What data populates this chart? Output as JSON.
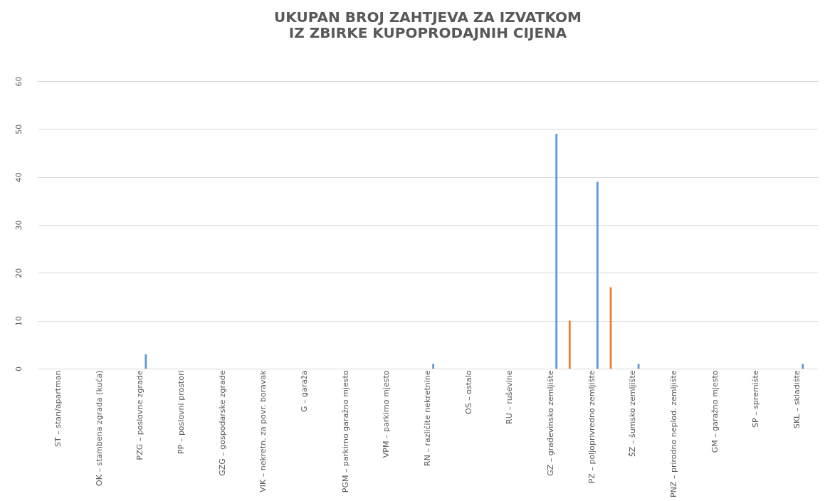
{
  "chart_data": {
    "type": "bar",
    "title": [
      "UKUPAN BROJ ZAHTJEVA ZA IZVATKOM",
      "IZ ZBIRKE KUPOPRODAJNIH CIJENA"
    ],
    "categories": [
      "ST – stan/apartman",
      "OK – stambena zgrada (kuća)",
      "PZG – poslovne zgrade",
      "PP – poslovni prostori",
      "GZG – gospodarske zgrade",
      "VIK – nekretn. za povr. boravak",
      "G – garaža",
      "PGM – parkirno garažno mjesto",
      "VPM – parkirno mjesto",
      "RN – različite nekretnine",
      "OS – ostalo",
      "RU – ruševine",
      "GZ – građevinsko zemljište",
      "PZ – poljoprivredno zemljište",
      "ŠZ – šumsko zemljište",
      "PNZ – prirodno neplod. zemljište",
      "GM – garažno mjesto",
      "SP – spremište",
      "SKL – skladište"
    ],
    "series": [
      {
        "color": "#5b9bd5",
        "values": [
          0,
          0,
          3,
          0,
          0,
          0,
          0,
          0,
          0,
          1,
          0,
          0,
          49,
          39,
          1,
          0,
          0,
          0,
          1
        ]
      },
      {
        "color": "#ed7d31",
        "values": [
          0,
          0,
          0,
          0,
          0,
          0,
          0,
          0,
          0,
          0,
          0,
          0,
          10,
          17,
          0,
          0,
          0,
          0,
          0
        ]
      }
    ],
    "ylim": [
      0,
      60
    ],
    "yticks": [
      0,
      10,
      20,
      30,
      40,
      50,
      60
    ],
    "grid": "y",
    "legend": false
  }
}
